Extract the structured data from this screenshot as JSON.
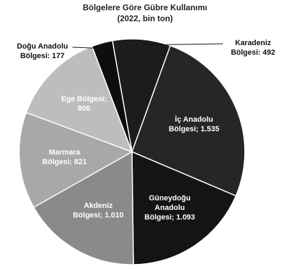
{
  "chart_data": {
    "type": "pie",
    "title": "Bölgelere Göre Gübre Kullanımı",
    "subtitle": "(2022, bin ton)",
    "categories": [
      "Karadeniz Bölgesi:",
      "İç Anadolu Bölgesi;",
      "Güneydoğu Anadolu Bölgesi;",
      "Akdeniz Bölgesi;",
      "Marmara Bölgesi;",
      "Ege Bölgesi;",
      "Doğu Anadolu Bölgesi:"
    ],
    "values": [
      492,
      1535,
      1093,
      1010,
      821,
      806,
      177
    ],
    "value_labels": [
      "492",
      "1.535",
      "1.093",
      "1.010",
      "821",
      "806",
      "177"
    ],
    "colors": [
      "#1c1c1c",
      "#262626",
      "#141414",
      "#8a8a8a",
      "#a8a8a8",
      "#bdbdbd",
      "#0e0e0e"
    ]
  }
}
